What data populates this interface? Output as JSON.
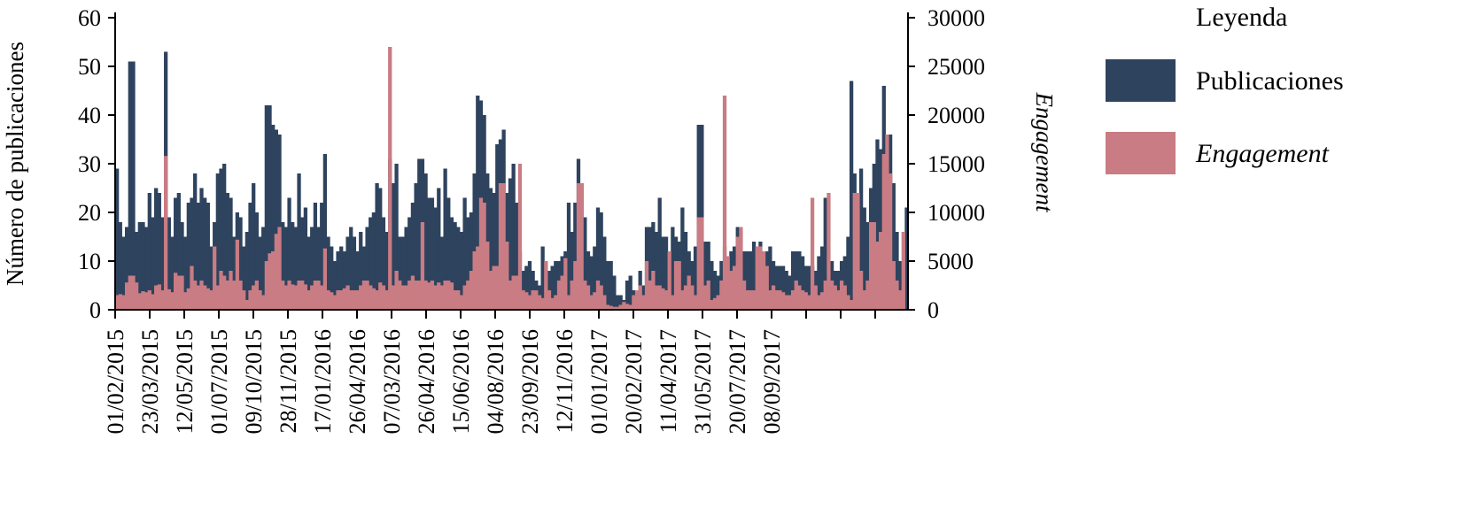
{
  "chart_data": {
    "type": "area",
    "y_left": {
      "label": "Número de publicaciones",
      "ticks": [
        0,
        10,
        20,
        30,
        40,
        50,
        60
      ],
      "range": [
        0,
        60
      ]
    },
    "y_right": {
      "label": "Engagement",
      "ticks": [
        0,
        5000,
        10000,
        15000,
        20000,
        25000,
        30000
      ],
      "range": [
        0,
        30000
      ]
    },
    "x_tick_labels": [
      "01/02/2015",
      "23/03/2015",
      "12/05/2015",
      "01/07/2015",
      "09/10/2015",
      "28/11/2015",
      "17/01/2016",
      "26/04/2016",
      "07/03/2016",
      "26/04/2016",
      "15/06/2016",
      "04/08/2016",
      "23/09/2016",
      "12/11/2016",
      "01/01/2017",
      "20/02/2017",
      "11/04/2017",
      "31/05/2017",
      "20/07/2017",
      "08/09/2017"
    ],
    "legend": {
      "title": "Leyenda",
      "position": "right",
      "items": [
        {
          "label": "Publicaciones",
          "color": "#2e435e"
        },
        {
          "label": "Engagement",
          "color": "#c97c83"
        }
      ]
    },
    "series": [
      {
        "name": "Publicaciones",
        "color": "#2e435e",
        "values": [
          29,
          18,
          15,
          17,
          51,
          51,
          16,
          18,
          18,
          17,
          24,
          19,
          25,
          24,
          19,
          53,
          19,
          15,
          23,
          24,
          18,
          15,
          22,
          23,
          28,
          22,
          25,
          23,
          22,
          13,
          18,
          28,
          29,
          30,
          24,
          23,
          15,
          20,
          19,
          13,
          16,
          22,
          26,
          20,
          15,
          17,
          42,
          42,
          38,
          37,
          36,
          18,
          17,
          23,
          18,
          17,
          28,
          19,
          21,
          15,
          17,
          22,
          17,
          22,
          32,
          15,
          13,
          10,
          12,
          13,
          12,
          15,
          17,
          15,
          12,
          16,
          13,
          17,
          19,
          20,
          26,
          25,
          19,
          16,
          31,
          26,
          30,
          15,
          15,
          17,
          19,
          22,
          26,
          31,
          31,
          28,
          23,
          23,
          21,
          25,
          15,
          29,
          23,
          19,
          18,
          17,
          16,
          23,
          19,
          20,
          28,
          44,
          43,
          40,
          28,
          25,
          24,
          34,
          35,
          37,
          24,
          27,
          30,
          22,
          12,
          8,
          9,
          10,
          8,
          6,
          5,
          13,
          10,
          8,
          9,
          10,
          10,
          11,
          12,
          22,
          16,
          22,
          31,
          26,
          19,
          12,
          11,
          13,
          21,
          20,
          15,
          10,
          10,
          7,
          3,
          3,
          2,
          6,
          7,
          4,
          4,
          8,
          5,
          17,
          17,
          18,
          16,
          23,
          15,
          15,
          11,
          17,
          15,
          14,
          21,
          16,
          12,
          10,
          13,
          38,
          38,
          14,
          14,
          10,
          8,
          7,
          10,
          13,
          10,
          12,
          13,
          17,
          16,
          12,
          12,
          12,
          14,
          13,
          14,
          12,
          12,
          13,
          10,
          9,
          9,
          9,
          8,
          7,
          12,
          12,
          12,
          11,
          9,
          9,
          9,
          8,
          11,
          13,
          23,
          9,
          10,
          8,
          8,
          10,
          11,
          15,
          47,
          28,
          22,
          29,
          21,
          18,
          25,
          30,
          35,
          33,
          46,
          36,
          36,
          26,
          16,
          10,
          7,
          21
        ]
      },
      {
        "name": "Engagement",
        "color": "#c97c83",
        "values": [
          1500,
          1600,
          1500,
          2800,
          3500,
          3500,
          2800,
          1700,
          1900,
          1800,
          2000,
          1600,
          2500,
          2600,
          2000,
          15800,
          2100,
          1800,
          3800,
          3500,
          3500,
          1800,
          2200,
          4500,
          3000,
          2500,
          3000,
          2500,
          2200,
          2000,
          6500,
          2500,
          4000,
          3500,
          3000,
          4000,
          3000,
          7200,
          3000,
          2000,
          1000,
          2000,
          2500,
          3000,
          2000,
          1500,
          5000,
          5800,
          6000,
          7800,
          8500,
          3000,
          2500,
          3000,
          2600,
          2500,
          3000,
          3000,
          2600,
          2000,
          2500,
          3000,
          3000,
          2500,
          6300,
          2000,
          1800,
          1500,
          2000,
          2000,
          2200,
          2500,
          2000,
          2000,
          2000,
          2500,
          3000,
          3000,
          2500,
          2200,
          2000,
          2800,
          2500,
          2000,
          27000,
          2500,
          4000,
          3000,
          2500,
          2500,
          3000,
          3500,
          3000,
          3000,
          9000,
          3000,
          2800,
          3000,
          2500,
          2800,
          2500,
          3000,
          3000,
          2800,
          2000,
          2000,
          1500,
          2500,
          3000,
          4000,
          6000,
          6500,
          11500,
          11000,
          7000,
          4000,
          4500,
          4500,
          13000,
          13000,
          7000,
          3000,
          3500,
          3500,
          15000,
          2000,
          1800,
          1500,
          2000,
          2000,
          1500,
          1200,
          5000,
          2000,
          1200,
          1500,
          3000,
          3500,
          5300,
          1500,
          3000,
          5000,
          13000,
          13000,
          3000,
          2500,
          1500,
          1800,
          3000,
          2500,
          1500,
          500,
          400,
          300,
          300,
          500,
          800,
          600,
          500,
          1500,
          2000,
          2500,
          1500,
          5000,
          3000,
          4000,
          2500,
          2500,
          2200,
          2000,
          6000,
          1500,
          5000,
          5000,
          2000,
          2500,
          3500,
          2500,
          1500,
          9500,
          9500,
          2500,
          3000,
          1000,
          1200,
          1500,
          3000,
          22000,
          5500,
          4000,
          4500,
          7500,
          8500,
          3000,
          2000,
          2000,
          2000,
          6500,
          6500,
          6000,
          4500,
          2000,
          2500,
          2000,
          2000,
          1800,
          1500,
          1500,
          2000,
          3000,
          2500,
          2000,
          1800,
          1500,
          11500,
          2500,
          1500,
          1800,
          3000,
          12000,
          3000,
          2500,
          2000,
          3000,
          2500,
          1500,
          1000,
          12000,
          12000,
          4000,
          2000,
          3000,
          9000,
          9000,
          7000,
          8000,
          16000,
          18000,
          14000,
          5000,
          3000,
          2000,
          8000
        ]
      }
    ]
  }
}
